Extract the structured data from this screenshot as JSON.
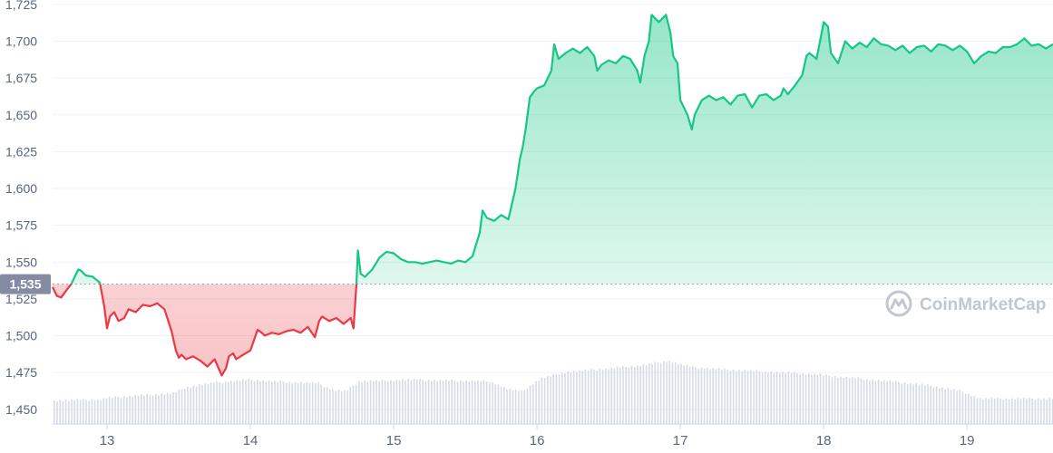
{
  "chart_data": {
    "type": "line",
    "title": "",
    "xlabel": "",
    "ylabel": "",
    "xlim": [
      12.62,
      19.6
    ],
    "ylim": [
      1440,
      1728
    ],
    "y_ticks": [
      1450,
      1475,
      1500,
      1525,
      1550,
      1575,
      1600,
      1625,
      1650,
      1675,
      1700,
      1725
    ],
    "y_tick_labels": [
      "1,450",
      "1,475",
      "1,500",
      "1,525",
      "1,550",
      "1,575",
      "1,600",
      "1,625",
      "1,650",
      "1,675",
      "1,700",
      "1,725"
    ],
    "x_ticks": [
      13,
      14,
      15,
      16,
      17,
      18,
      19
    ],
    "x_tick_labels": [
      "13",
      "14",
      "15",
      "16",
      "17",
      "18",
      "19"
    ],
    "reference_value": 1535,
    "reference_label": "1,535",
    "grid": true,
    "colors": {
      "up": "#16c784",
      "down": "#ea3943",
      "volume": "#d7dae6",
      "reference": "#9aa1ad",
      "badge": "#858ca2"
    },
    "series": [
      {
        "x": [
          12.62,
          12.65,
          12.68,
          12.71,
          12.75,
          12.8,
          12.82,
          12.85,
          12.9,
          12.95,
          12.98,
          13.0,
          13.02,
          13.05,
          13.08,
          13.12,
          13.15,
          13.2,
          13.25,
          13.3,
          13.35,
          13.4,
          13.45,
          13.48,
          13.5,
          13.52,
          13.55,
          13.6,
          13.65,
          13.7,
          13.75,
          13.8,
          13.83,
          13.85,
          13.88,
          13.9,
          13.95,
          14.0,
          14.05,
          14.08,
          14.1,
          14.15,
          14.2,
          14.25,
          14.3,
          14.35,
          14.4,
          14.45,
          14.48,
          14.5,
          14.55,
          14.6,
          14.65,
          14.7,
          14.72,
          14.74,
          14.75,
          14.77,
          14.8,
          14.85,
          14.9,
          14.95,
          15.0,
          15.05,
          15.1,
          15.15,
          15.2,
          15.25,
          15.3,
          15.35,
          15.4,
          15.45,
          15.5,
          15.55,
          15.6,
          15.62,
          15.65,
          15.7,
          15.75,
          15.8,
          15.85,
          15.88,
          15.9,
          15.92,
          15.95,
          15.98,
          16.0,
          16.05,
          16.1,
          16.12,
          16.15,
          16.2,
          16.25,
          16.3,
          16.35,
          16.4,
          16.42,
          16.45,
          16.5,
          16.55,
          16.6,
          16.65,
          16.7,
          16.72,
          16.75,
          16.78,
          16.8,
          16.85,
          16.9,
          16.93,
          16.95,
          16.98,
          17.0,
          17.05,
          17.08,
          17.1,
          17.15,
          17.2,
          17.25,
          17.3,
          17.35,
          17.4,
          17.45,
          17.5,
          17.55,
          17.6,
          17.65,
          17.7,
          17.72,
          17.75,
          17.8,
          17.85,
          17.88,
          17.9,
          17.95,
          18.0,
          18.03,
          18.05,
          18.1,
          18.15,
          18.2,
          18.25,
          18.3,
          18.35,
          18.4,
          18.45,
          18.5,
          18.55,
          18.6,
          18.65,
          18.7,
          18.75,
          18.8,
          18.85,
          18.9,
          18.95,
          19.0,
          19.05,
          19.1,
          19.15,
          19.2,
          19.25,
          19.3,
          19.35,
          19.4,
          19.45,
          19.5,
          19.55,
          19.6
        ],
        "y": [
          1533,
          1527,
          1526,
          1530,
          1535,
          1545,
          1544,
          1541,
          1540,
          1536,
          1520,
          1505,
          1513,
          1516,
          1510,
          1512,
          1518,
          1516,
          1521,
          1520,
          1522,
          1518,
          1503,
          1490,
          1485,
          1487,
          1484,
          1486,
          1483,
          1479,
          1484,
          1473,
          1478,
          1486,
          1488,
          1484,
          1487,
          1490,
          1504,
          1502,
          1500,
          1502,
          1501,
          1503,
          1504,
          1502,
          1506,
          1499,
          1510,
          1513,
          1510,
          1512,
          1508,
          1512,
          1505,
          1535,
          1558,
          1542,
          1540,
          1545,
          1553,
          1557,
          1556,
          1552,
          1550,
          1550,
          1549,
          1550,
          1551,
          1550,
          1549,
          1551,
          1550,
          1554,
          1570,
          1585,
          1580,
          1578,
          1582,
          1579,
          1600,
          1620,
          1628,
          1640,
          1662,
          1666,
          1668,
          1670,
          1680,
          1698,
          1688,
          1692,
          1695,
          1692,
          1696,
          1690,
          1680,
          1684,
          1687,
          1685,
          1690,
          1688,
          1680,
          1672,
          1690,
          1700,
          1718,
          1713,
          1718,
          1706,
          1690,
          1685,
          1660,
          1650,
          1640,
          1650,
          1660,
          1663,
          1660,
          1662,
          1657,
          1663,
          1664,
          1655,
          1663,
          1664,
          1660,
          1663,
          1668,
          1664,
          1670,
          1677,
          1690,
          1692,
          1688,
          1713,
          1710,
          1692,
          1685,
          1700,
          1695,
          1699,
          1696,
          1702,
          1698,
          1697,
          1694,
          1697,
          1692,
          1696,
          1697,
          1693,
          1698,
          1697,
          1694,
          1697,
          1693,
          1685,
          1690,
          1693,
          1692,
          1696,
          1696,
          1698,
          1702,
          1697,
          1698,
          1695,
          1698
        ]
      }
    ]
  },
  "watermark": {
    "text": "CoinMarketCap",
    "icon": "coinmarketcap-logo-icon"
  }
}
